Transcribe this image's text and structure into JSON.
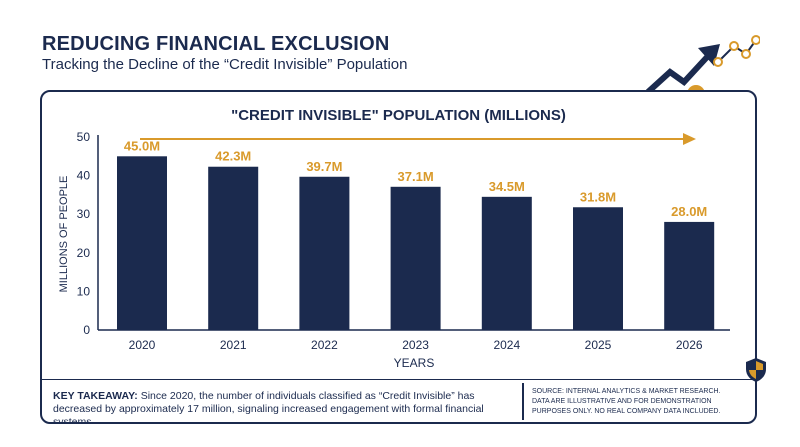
{
  "header": {
    "title": "REDUCING FINANCIAL EXCLUSION",
    "subtitle": "Tracking the Decline of the “Credit Invisible” Population"
  },
  "icons": {
    "top_right": "trend-chart-arrow-minus-icon",
    "bottom_right": "shield-icon"
  },
  "colors": {
    "navy": "#1b2a4e",
    "accent": "#d99a2b"
  },
  "chart_data": {
    "type": "bar",
    "title": "\"CREDIT INVISIBLE\" POPULATION (MILLIONS)",
    "xlabel": "YEARS",
    "ylabel": "MILLIONS OF PEOPLE",
    "categories": [
      "2020",
      "2021",
      "2022",
      "2023",
      "2024",
      "2025",
      "2026"
    ],
    "values": [
      45.0,
      42.3,
      39.7,
      37.1,
      34.5,
      31.8,
      28.0
    ],
    "data_labels": [
      "45.0M",
      "42.3M",
      "39.7M",
      "37.1M",
      "34.5M",
      "31.8M",
      "28.0M"
    ],
    "ylim": [
      0,
      50
    ],
    "yticks": [
      "0",
      "10",
      "20",
      "30",
      "40",
      "50"
    ],
    "grid": false,
    "annotation": "trend-arrow"
  },
  "footer": {
    "takeaway_label": "KEY TAKEAWAY:",
    "takeaway_text": " Since 2020, the number of individuals classified as “Credit Invisible” has decreased by approximately 17 million, signaling increased engagement with formal financial systems.",
    "source_line1": "SOURCE: INTERNAL ANALYTICS & MARKET RESEARCH.",
    "source_line2": "DATA ARE ILLUSTRATIVE AND FOR DEMONSTRATION PURPOSES ONLY. NO REAL COMPANY DATA INCLUDED."
  }
}
